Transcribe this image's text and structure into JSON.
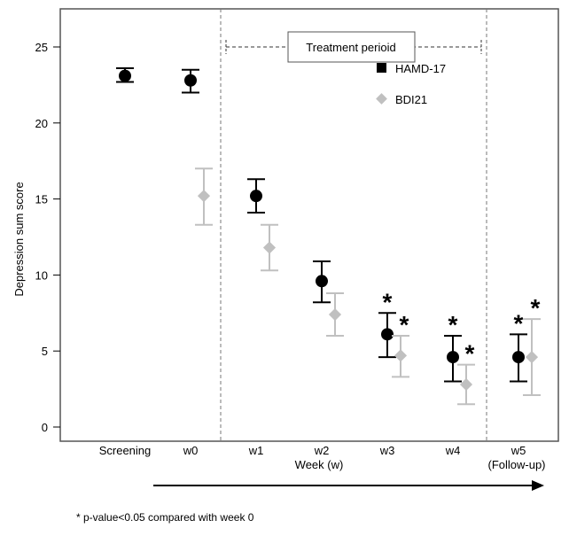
{
  "chart_data": {
    "type": "scatter",
    "ylabel": "Depression sum score",
    "xlabel": "Week (w)",
    "ylim": [
      0,
      25
    ],
    "yticks": [
      0,
      5,
      10,
      15,
      20,
      25
    ],
    "categories": [
      "Screening",
      "w0",
      "w1",
      "w2",
      "w3",
      "w4",
      "w5"
    ],
    "x_sublabel": "(Follow-up)",
    "annotation": "Treatment perioid",
    "footnote": "* p-value<0.05 compared with week 0",
    "legend_position": "top-right",
    "series": [
      {
        "name": "HAMD-17",
        "color": "#000000",
        "marker": "circle",
        "values": [
          23.1,
          22.8,
          15.2,
          9.6,
          6.1,
          4.6,
          4.6
        ],
        "lower": [
          22.7,
          22.0,
          14.1,
          8.2,
          4.6,
          3.0,
          3.0
        ],
        "upper": [
          23.6,
          23.5,
          16.3,
          10.9,
          7.5,
          6.0,
          6.1
        ],
        "significant": [
          false,
          false,
          false,
          false,
          true,
          true,
          true
        ]
      },
      {
        "name": "BDI21",
        "color": "#c0c0c0",
        "marker": "diamond",
        "values": [
          null,
          15.2,
          11.8,
          7.4,
          4.7,
          2.8,
          4.6
        ],
        "lower": [
          null,
          13.3,
          10.3,
          6.0,
          3.3,
          1.5,
          2.1
        ],
        "upper": [
          null,
          17.0,
          13.3,
          8.8,
          6.0,
          4.1,
          7.1
        ],
        "significant": [
          false,
          false,
          false,
          false,
          true,
          true,
          true
        ]
      }
    ],
    "significance_marker": "*"
  }
}
